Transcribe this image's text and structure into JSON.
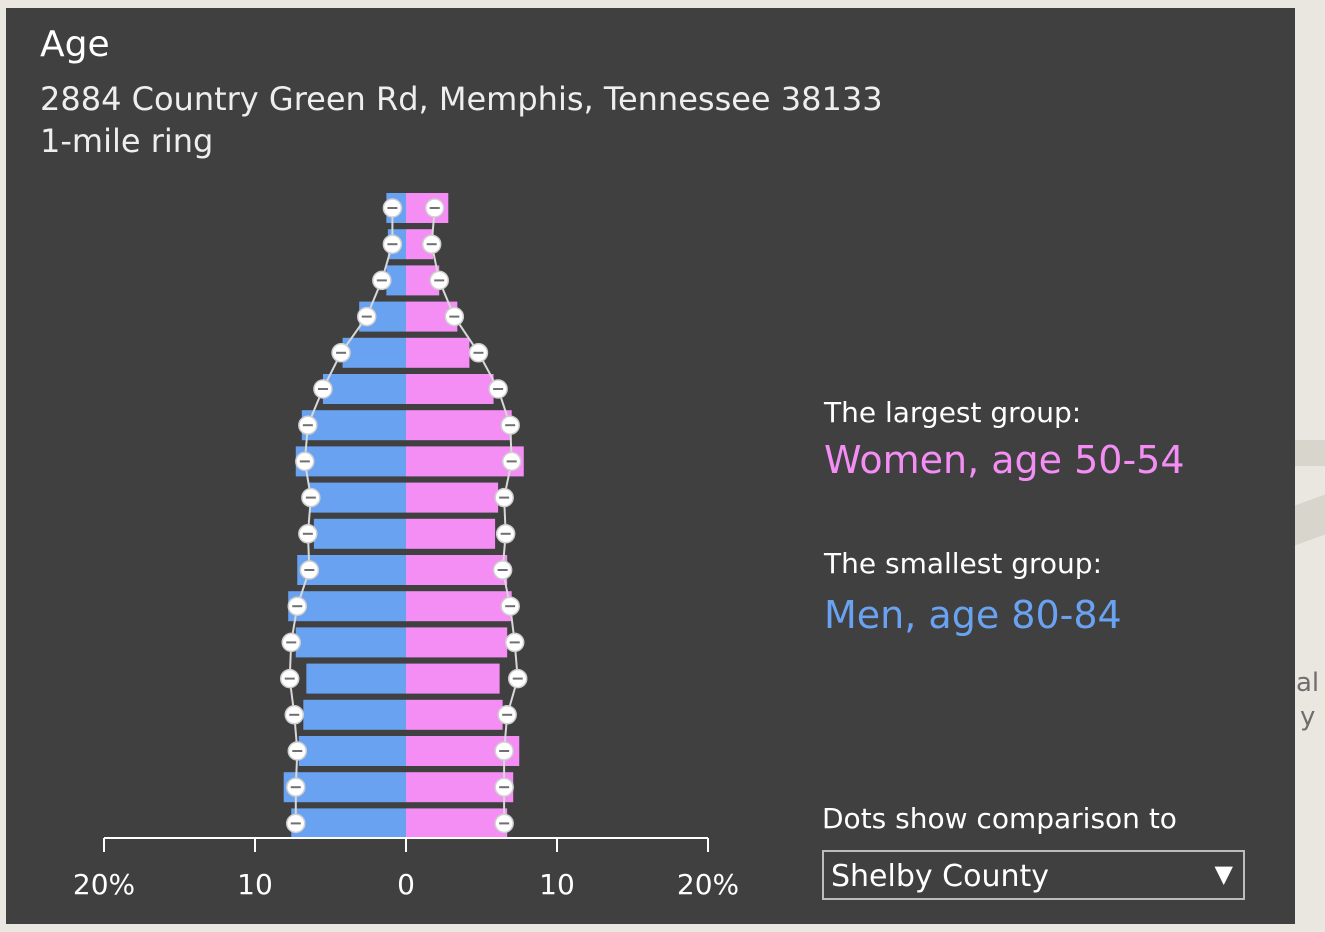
{
  "panel": {
    "title": "Age",
    "address": "2884 Country Green Rd, Memphis, Tennessee 38133",
    "ring": "1-mile ring"
  },
  "largest": {
    "label": "The largest group:",
    "value": "Women, age 50-54"
  },
  "smallest": {
    "label": "The smallest group:",
    "value": "Men, age 80-84"
  },
  "comparison": {
    "label": "Dots show comparison to",
    "selected": "Shelby County"
  },
  "map_fragments": {
    "text1": "al",
    "text2": "y"
  },
  "colors": {
    "men": "#6aa2f2",
    "women": "#f48ef4",
    "panel_bg": "#404040",
    "axis": "#ffffff"
  },
  "chart_data": {
    "type": "bar",
    "subtype": "population-pyramid",
    "x_tick_labels": [
      "20%",
      "10",
      "0",
      "10",
      "20%"
    ],
    "x_ticks": [
      -20,
      -10,
      0,
      10,
      20
    ],
    "xlim": [
      -20,
      20
    ],
    "rows_top_to_bottom": 18,
    "series": [
      {
        "name": "Men",
        "values": [
          1.3,
          1.2,
          1.3,
          3.1,
          4.2,
          5.5,
          6.9,
          7.3,
          6.4,
          6.1,
          7.2,
          7.8,
          7.3,
          6.6,
          6.8,
          7.1,
          8.1,
          7.6
        ]
      },
      {
        "name": "Women",
        "values": [
          2.8,
          1.8,
          2.2,
          3.4,
          4.2,
          5.8,
          7.0,
          7.8,
          6.1,
          5.9,
          6.7,
          7.0,
          6.7,
          6.2,
          6.4,
          7.5,
          7.1,
          6.7
        ]
      },
      {
        "name": "Shelby County (men)",
        "values": [
          0.9,
          0.9,
          1.6,
          2.6,
          4.3,
          5.5,
          6.5,
          6.7,
          6.3,
          6.5,
          6.4,
          7.2,
          7.6,
          7.7,
          7.4,
          7.2,
          7.3,
          7.3
        ]
      },
      {
        "name": "Shelby County (women)",
        "values": [
          1.9,
          1.7,
          2.2,
          3.2,
          4.8,
          6.1,
          6.9,
          7.0,
          6.5,
          6.6,
          6.4,
          6.9,
          7.2,
          7.4,
          6.7,
          6.5,
          6.5,
          6.5
        ]
      }
    ],
    "grid": false
  }
}
